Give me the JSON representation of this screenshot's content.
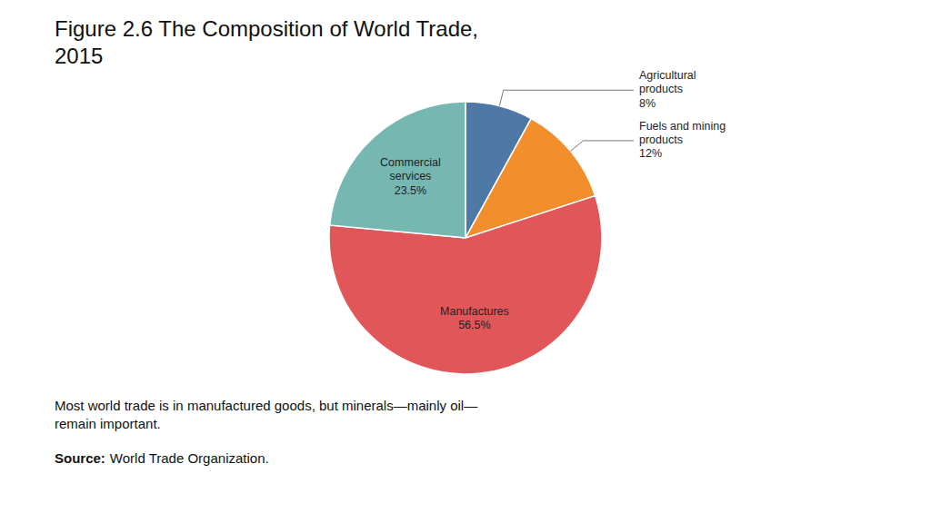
{
  "chart_data": {
    "type": "pie",
    "title": "Figure 2.6 The Composition of World Trade,\n2015",
    "categories": [
      "Agricultural\nproducts",
      "Fuels and mining\nproducts",
      "Manufactures",
      "Commercial\nservices"
    ],
    "values": [
      8,
      12,
      56.5,
      23.5
    ],
    "value_labels": [
      "8%",
      "12%",
      "56.5%",
      "23.5%"
    ],
    "data_labels": true,
    "annotations": [
      "Most world trade is in manufactured goods, but minerals—mainly oil—\nremain important.",
      "Source:",
      "World Trade Organization."
    ]
  }
}
